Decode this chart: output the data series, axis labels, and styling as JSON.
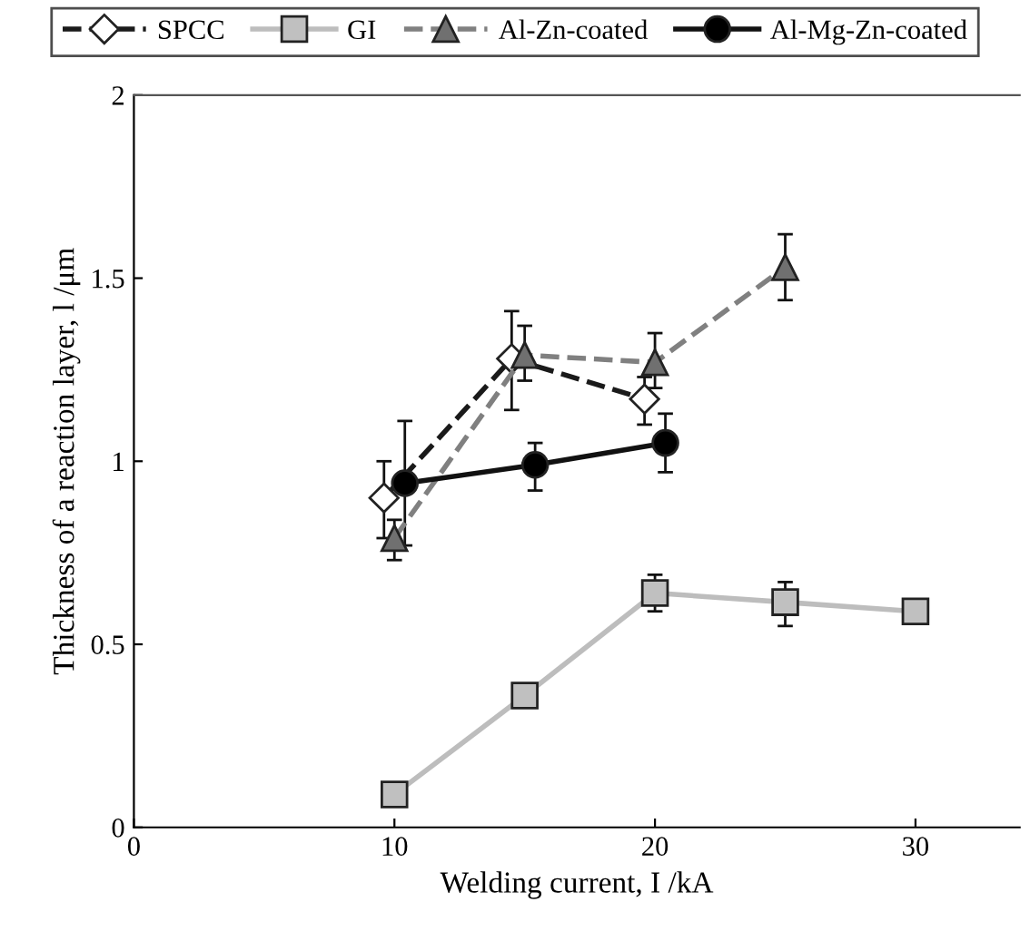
{
  "chart_data": {
    "type": "line",
    "xlabel": "Welding current, I /kA",
    "ylabel": "Thickness of a reaction layer, l /μm",
    "xlim": [
      0,
      34
    ],
    "xticks": [
      0,
      10,
      20,
      30
    ],
    "ylim": [
      0,
      2
    ],
    "yticks": [
      0,
      0.5,
      1,
      1.5,
      2
    ],
    "grid": false,
    "legend": "top",
    "series": [
      {
        "name": "SPCC",
        "color": "#1a1a1a",
        "line_style": "dashed",
        "marker": "diamond",
        "x": [
          9.6,
          14.5,
          19.6
        ],
        "values": [
          0.9,
          1.28,
          1.17
        ],
        "errors": [
          [
            0.79,
            1.0
          ],
          [
            1.14,
            1.41
          ],
          [
            1.1,
            1.23
          ]
        ]
      },
      {
        "name": "GI",
        "color": "#bdbdbd",
        "line_style": "solid",
        "marker": "square",
        "x": [
          10,
          15,
          20,
          25,
          30
        ],
        "values": [
          0.09,
          0.36,
          0.64,
          0.615,
          0.59
        ],
        "errors": [
          null,
          [
            0.33,
            0.39
          ],
          [
            0.59,
            0.69
          ],
          [
            0.55,
            0.67
          ],
          null
        ]
      },
      {
        "name": "Al-Zn-coated",
        "color": "#808080",
        "line_style": "dashed",
        "marker": "triangle",
        "x": [
          10,
          15,
          20,
          25
        ],
        "values": [
          0.79,
          1.29,
          1.27,
          1.53
        ],
        "errors": [
          [
            0.73,
            0.84
          ],
          [
            1.22,
            1.37
          ],
          [
            1.2,
            1.35
          ],
          [
            1.44,
            1.62
          ]
        ]
      },
      {
        "name": "Al-Mg-Zn-coated",
        "color": "#111111",
        "line_style": "solid",
        "marker": "circle",
        "x": [
          10.4,
          15.4,
          20.4
        ],
        "values": [
          0.94,
          0.99,
          1.05
        ],
        "errors": [
          [
            0.77,
            1.11
          ],
          [
            0.92,
            1.05
          ],
          [
            0.97,
            1.13
          ]
        ]
      }
    ]
  }
}
